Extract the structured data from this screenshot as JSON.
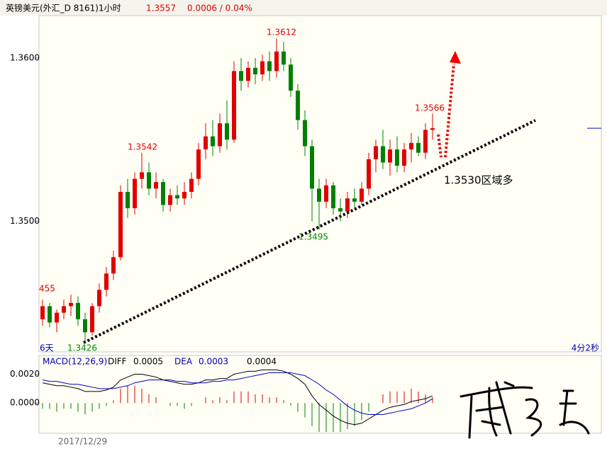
{
  "chart_data": {
    "type": "candlestick",
    "header": {
      "title": "英镑美元(外汇_D 8161)1小时",
      "price": "1.3557",
      "change": "0.0006 / 0.04%"
    },
    "up_color": "#e00000",
    "down_color": "#008000",
    "open": [
      1.344,
      1.3448,
      1.3438,
      1.3444,
      1.3448,
      1.345,
      1.344,
      1.3432,
      1.3448,
      1.3458,
      1.3468,
      1.3478,
      1.3518,
      1.3508,
      1.3526,
      1.353,
      1.352,
      1.3524,
      1.351,
      1.3516,
      1.3514,
      1.3518,
      1.3526,
      1.3544,
      1.3552,
      1.3546,
      1.356,
      1.355,
      1.3592,
      1.3586,
      1.3594,
      1.359,
      1.3598,
      1.3592,
      1.3604,
      1.3596,
      1.358,
      1.3562,
      1.3546,
      1.352,
      1.3512,
      1.3522,
      1.3508,
      1.3506,
      1.3514,
      1.3512,
      1.352,
      1.3538,
      1.3546,
      1.3536,
      1.3544,
      1.3534,
      1.3544,
      1.3548,
      1.3542,
      1.3556
    ],
    "high": [
      1.3452,
      1.345,
      1.3446,
      1.3452,
      1.3455,
      1.3454,
      1.3444,
      1.345,
      1.3462,
      1.3472,
      1.3482,
      1.3522,
      1.3526,
      1.353,
      1.3542,
      1.3536,
      1.353,
      1.3526,
      1.352,
      1.3522,
      1.3524,
      1.353,
      1.3548,
      1.356,
      1.3562,
      1.3566,
      1.3574,
      1.3598,
      1.36,
      1.3598,
      1.36,
      1.3602,
      1.3604,
      1.3612,
      1.361,
      1.36,
      1.3584,
      1.3568,
      1.355,
      1.3526,
      1.3526,
      1.3524,
      1.3514,
      1.3518,
      1.352,
      1.3524,
      1.3542,
      1.355,
      1.3556,
      1.355,
      1.3552,
      1.3548,
      1.3554,
      1.3552,
      1.356,
      1.3566
    ],
    "low": [
      1.3436,
      1.3435,
      1.3432,
      1.344,
      1.3442,
      1.3436,
      1.3426,
      1.343,
      1.3444,
      1.3454,
      1.3464,
      1.3476,
      1.3502,
      1.3504,
      1.352,
      1.3516,
      1.3514,
      1.3506,
      1.3506,
      1.351,
      1.351,
      1.3514,
      1.3522,
      1.3538,
      1.354,
      1.3542,
      1.3544,
      1.3548,
      1.358,
      1.3582,
      1.3584,
      1.3586,
      1.3586,
      1.3588,
      1.3592,
      1.3576,
      1.3556,
      1.354,
      1.35,
      1.3495,
      1.3508,
      1.3504,
      1.35,
      1.3502,
      1.3508,
      1.351,
      1.3516,
      1.353,
      1.3532,
      1.3528,
      1.353,
      1.353,
      1.3536,
      1.354,
      1.3538,
      1.355
    ],
    "close": [
      1.3448,
      1.3438,
      1.3444,
      1.3448,
      1.345,
      1.344,
      1.3432,
      1.3448,
      1.3458,
      1.3468,
      1.3478,
      1.3518,
      1.3508,
      1.3526,
      1.353,
      1.352,
      1.3524,
      1.351,
      1.3516,
      1.3514,
      1.3518,
      1.3526,
      1.3544,
      1.3552,
      1.3546,
      1.356,
      1.355,
      1.3592,
      1.3586,
      1.3594,
      1.359,
      1.3598,
      1.3592,
      1.3604,
      1.3596,
      1.358,
      1.3562,
      1.3546,
      1.352,
      1.3512,
      1.3522,
      1.3508,
      1.3506,
      1.3514,
      1.3512,
      1.352,
      1.3538,
      1.3546,
      1.3536,
      1.3544,
      1.3534,
      1.3544,
      1.3548,
      1.3542,
      1.3556,
      1.3557
    ],
    "ylim": [
      1.342,
      1.3626
    ],
    "yticks": [
      {
        "value": 1.36,
        "label": "1.3600"
      },
      {
        "value": 1.35,
        "label": "1.3500"
      }
    ],
    "annotations": [
      "1.3612",
      "1.3542",
      "1.3566",
      "1.3495",
      "1.3426",
      "455",
      "1.3530区域多"
    ],
    "left_note": "6天",
    "right_note": "4分2秒",
    "date": "2017/12/29",
    "macd": {
      "title": "MACD(12,26,9)",
      "diff_label": "DIFF",
      "diff_value": "0.0005",
      "dea_label": "DEA",
      "dea_value": "0.0003",
      "macd_value": "0.0004",
      "ylim": [
        -0.0021,
        0.0033
      ],
      "yticks": [
        {
          "value": 0.002,
          "label": "0.0020"
        },
        {
          "value": 0,
          "label": "0.0000"
        }
      ],
      "diff_color": "#000000",
      "dea_color": "#0000c0",
      "diff": [
        0.0014,
        0.0013,
        0.0012,
        0.0012,
        0.0011,
        0.001,
        0.0008,
        0.0008,
        0.0008,
        0.0009,
        0.0011,
        0.0016,
        0.0018,
        0.002,
        0.002,
        0.0019,
        0.0018,
        0.0016,
        0.0015,
        0.0014,
        0.0013,
        0.0013,
        0.0014,
        0.0016,
        0.0016,
        0.0017,
        0.0017,
        0.002,
        0.0021,
        0.0022,
        0.0022,
        0.0023,
        0.0023,
        0.0023,
        0.0022,
        0.002,
        0.0017,
        0.0013,
        0.0005,
        -0.0001,
        -0.0005,
        -0.0009,
        -0.0012,
        -0.0014,
        -0.0015,
        -0.0014,
        -0.0011,
        -0.0008,
        -0.0005,
        -0.0003,
        -0.0002,
        -0.0001,
        0.0001,
        0.0002,
        0.0003,
        0.0005
      ],
      "dea": [
        0.0016,
        0.0015,
        0.0015,
        0.0014,
        0.0013,
        0.0013,
        0.0012,
        0.0011,
        0.001,
        0.001,
        0.001,
        0.0011,
        0.0012,
        0.0014,
        0.0015,
        0.0016,
        0.0016,
        0.0016,
        0.0016,
        0.0015,
        0.0015,
        0.0014,
        0.0014,
        0.0014,
        0.0015,
        0.0015,
        0.0016,
        0.0016,
        0.0017,
        0.0018,
        0.0019,
        0.002,
        0.0021,
        0.0021,
        0.0021,
        0.0021,
        0.002,
        0.0019,
        0.0016,
        0.0013,
        0.0009,
        0.0006,
        0.0002,
        -0.0002,
        -0.0005,
        -0.0007,
        -0.0008,
        -0.0008,
        -0.0008,
        -0.0007,
        -0.0006,
        -0.0005,
        -0.0004,
        -0.0002,
        0.0,
        0.0003
      ],
      "bars": [
        -0.0004,
        -0.0004,
        -0.0006,
        -0.0004,
        -0.0004,
        -0.0006,
        -0.0008,
        -0.0006,
        -0.0004,
        -0.0002,
        0.0002,
        0.001,
        0.0012,
        0.0012,
        0.001,
        0.0006,
        0.0004,
        0.0,
        -0.0002,
        -0.0002,
        -0.0004,
        -0.0002,
        0.0,
        0.0004,
        0.0002,
        0.0004,
        0.0002,
        0.0008,
        0.0008,
        0.0008,
        0.0006,
        0.0006,
        0.0004,
        0.0004,
        0.0002,
        -0.0002,
        -0.0006,
        -0.001,
        -0.0016,
        -0.002,
        -0.002,
        -0.002,
        -0.002,
        -0.0018,
        -0.0016,
        -0.0012,
        -0.0006,
        0.0,
        0.0006,
        0.0008,
        0.0008,
        0.0008,
        0.001,
        0.0008,
        0.0006,
        0.0004
      ]
    }
  }
}
